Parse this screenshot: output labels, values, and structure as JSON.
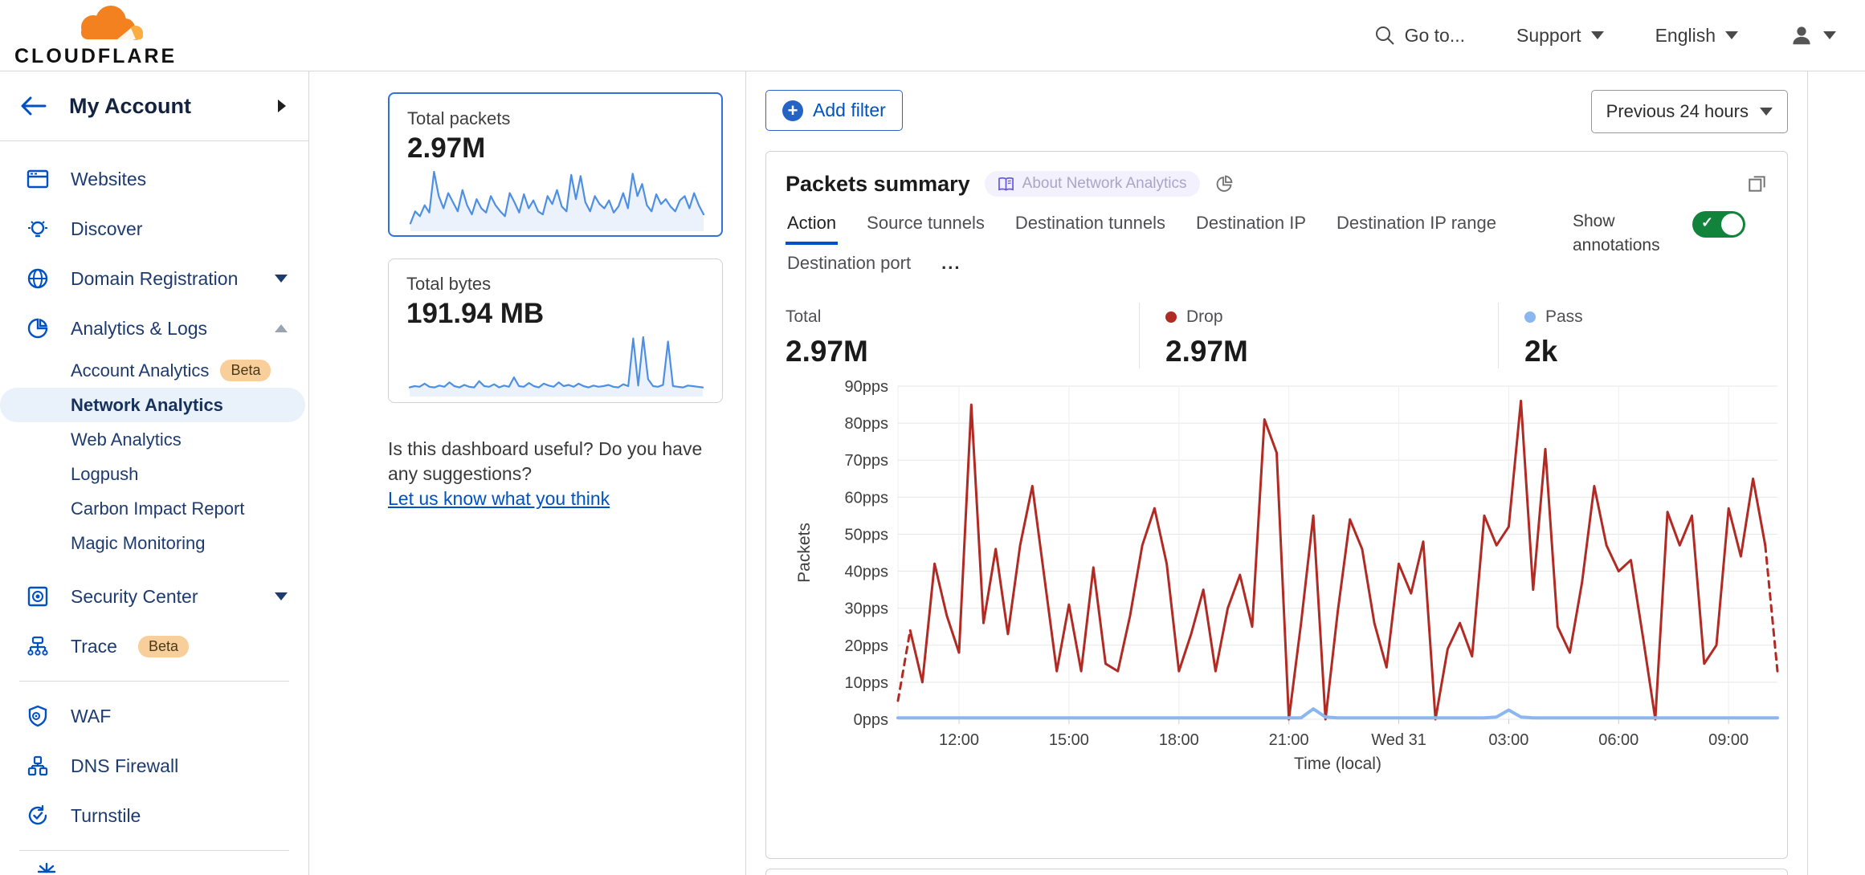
{
  "topbar": {
    "logo_text": "CLOUDFLARE",
    "goto": "Go to...",
    "support": "Support",
    "language": "English"
  },
  "sidebar": {
    "account": "My Account",
    "websites": "Websites",
    "discover": "Discover",
    "domain_registration": "Domain Registration",
    "analytics_logs": "Analytics & Logs",
    "account_analytics": "Account Analytics",
    "account_analytics_badge": "Beta",
    "network_analytics": "Network Analytics",
    "web_analytics": "Web Analytics",
    "logpush": "Logpush",
    "carbon_impact_report": "Carbon Impact Report",
    "magic_monitoring": "Magic Monitoring",
    "security_center": "Security Center",
    "trace": "Trace",
    "trace_badge": "Beta",
    "waf": "WAF",
    "dns_firewall": "DNS Firewall",
    "turnstile": "Turnstile",
    "icons": [
      "browser-icon",
      "lightbulb-icon",
      "globe-icon",
      "pie-chart-icon",
      "safe-icon",
      "trace-icon",
      "shield-gear-icon",
      "hierarchy-icon",
      "refresh-check-icon",
      "burst-icon"
    ]
  },
  "summary_cards": {
    "packets_label": "Total packets",
    "packets_value": "2.97M",
    "bytes_label": "Total bytes",
    "bytes_value": "191.94 MB"
  },
  "feedback": {
    "question": "Is this dashboard useful? Do you have any suggestions?",
    "link": "Let us know what you think"
  },
  "main": {
    "add_filter": "Add filter",
    "time_range": "Previous 24 hours",
    "panel_title": "Packets summary",
    "about_badge": "About Network Analytics",
    "tabs": [
      "Action",
      "Source tunnels",
      "Destination tunnels",
      "Destination IP",
      "Destination IP range",
      "Destination port"
    ],
    "tabs_more": "...",
    "show_annotations": "Show annotations",
    "stats": [
      {
        "label": "Total",
        "value": "2.97M",
        "dot": null
      },
      {
        "label": "Drop",
        "value": "2.97M",
        "dot": "#b12b24"
      },
      {
        "label": "Pass",
        "value": "2k",
        "dot": "#8ab7f0"
      }
    ]
  },
  "colors": {
    "accent_blue": "#0051c3",
    "sidebar_navy": "#1e3b6f",
    "selected_bg": "#e9f1fb",
    "beta_badge_bg": "#f8cf9a",
    "drop_red": "#b12b24",
    "pass_blue": "#8ab7f0",
    "toggle_green": "#12833b",
    "sparkline_blue": "#4d8fe3"
  },
  "chart_data": [
    {
      "type": "line",
      "title": "Packets summary",
      "xlabel": "Time (local)",
      "ylabel": "Packets",
      "ylim": [
        0,
        90
      ],
      "y_unit": "pps",
      "y_tick_step": 10,
      "grid": true,
      "legend_position": "top",
      "points_interval_minutes": 20,
      "x_ticks": [
        {
          "index": 5,
          "label": "12:00"
        },
        {
          "index": 14,
          "label": "15:00"
        },
        {
          "index": 23,
          "label": "18:00"
        },
        {
          "index": 32,
          "label": "21:00"
        },
        {
          "index": 41,
          "label": "Wed 31"
        },
        {
          "index": 50,
          "label": "03:00"
        },
        {
          "index": 59,
          "label": "06:00"
        },
        {
          "index": 68,
          "label": "09:00"
        }
      ],
      "series": [
        {
          "name": "Drop",
          "color": "#b12b24",
          "dashed_start": true,
          "dashed_end": true,
          "values": [
            5,
            24,
            10,
            42,
            28,
            18,
            85,
            26,
            46,
            23,
            47,
            63,
            38,
            13,
            31,
            13,
            41,
            15,
            13,
            28,
            47,
            57,
            42,
            13,
            23,
            35,
            13,
            30,
            39,
            25,
            81,
            72,
            0,
            26,
            55,
            0,
            29,
            54,
            46,
            26,
            14,
            42,
            34,
            48,
            0,
            19,
            26,
            17,
            55,
            47,
            52,
            86,
            35,
            73,
            25,
            18,
            37,
            63,
            47,
            40,
            43,
            22,
            0,
            56,
            47,
            55,
            15,
            20,
            57,
            44,
            65,
            47,
            13
          ]
        },
        {
          "name": "Pass",
          "color": "#8ab7f0",
          "dashed_start": false,
          "dashed_end": false,
          "values": [
            0.4,
            0.4,
            0.4,
            0.4,
            0.4,
            0.4,
            0.4,
            0.4,
            0.4,
            0.4,
            0.4,
            0.4,
            0.4,
            0.4,
            0.4,
            0.4,
            0.4,
            0.4,
            0.4,
            0.4,
            0.4,
            0.4,
            0.4,
            0.4,
            0.4,
            0.4,
            0.4,
            0.4,
            0.4,
            0.4,
            0.4,
            0.4,
            0.4,
            0.4,
            2.8,
            0.6,
            0.4,
            0.4,
            0.4,
            0.4,
            0.4,
            0.4,
            0.4,
            0.4,
            0.4,
            0.4,
            0.4,
            0.4,
            0.4,
            0.6,
            2.5,
            0.6,
            0.4,
            0.4,
            0.4,
            0.4,
            0.4,
            0.4,
            0.4,
            0.4,
            0.4,
            0.4,
            0.4,
            0.4,
            0.4,
            0.4,
            0.4,
            0.4,
            0.4,
            0.4,
            0.4,
            0.4,
            0.4
          ]
        }
      ]
    },
    {
      "type": "area",
      "title": "Total packets sparkline",
      "values": [
        10,
        30,
        22,
        40,
        28,
        95,
        55,
        35,
        60,
        45,
        30,
        65,
        40,
        25,
        50,
        35,
        28,
        55,
        40,
        30,
        22,
        60,
        45,
        28,
        58,
        35,
        48,
        30,
        25,
        55,
        42,
        65,
        38,
        30,
        90,
        50,
        88,
        45,
        30,
        55,
        42,
        35,
        48,
        28,
        38,
        60,
        35,
        92,
        55,
        75,
        40,
        30,
        58,
        42,
        50,
        38,
        30,
        48,
        55,
        35,
        60,
        40,
        25
      ]
    },
    {
      "type": "area",
      "title": "Total bytes sparkline",
      "values": [
        12,
        14,
        13,
        18,
        13,
        12,
        15,
        13,
        20,
        14,
        12,
        16,
        13,
        12,
        22,
        14,
        13,
        17,
        12,
        15,
        13,
        28,
        14,
        13,
        19,
        14,
        12,
        18,
        15,
        13,
        20,
        14,
        16,
        13,
        18,
        14,
        12,
        15,
        13,
        14,
        16,
        13,
        12,
        17,
        14,
        90,
        15,
        92,
        25,
        14,
        13,
        16,
        85,
        14,
        13,
        12,
        15,
        14,
        13,
        12
      ]
    }
  ]
}
